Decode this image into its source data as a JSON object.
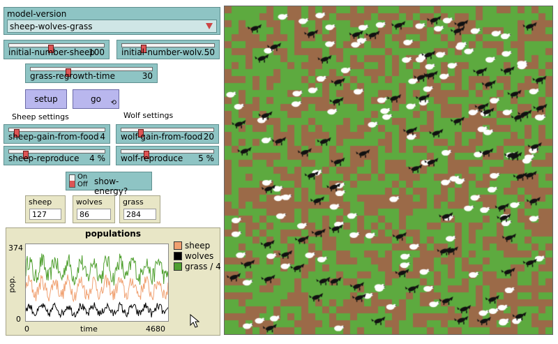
{
  "chooser": {
    "label": "model-version",
    "value": "sheep-wolves-grass"
  },
  "sliders": {
    "initial_sheep": {
      "label": "initial-number-sheep",
      "value": "100"
    },
    "initial_wolves": {
      "label": "initial-number-wolv...",
      "value": "50"
    },
    "grass_regrowth": {
      "label": "grass-regrowth-time",
      "value": "30"
    },
    "sheep_gain": {
      "label": "sheep-gain-from-food",
      "value": "4"
    },
    "sheep_reproduce": {
      "label": "sheep-reproduce",
      "value": "4 %"
    },
    "wolf_gain": {
      "label": "wolf-gain-from-food",
      "value": "20"
    },
    "wolf_reproduce": {
      "label": "wolf-reproduce",
      "value": "5 %"
    }
  },
  "buttons": {
    "setup": "setup",
    "go": "go"
  },
  "notes": {
    "sheep_settings": "Sheep settings",
    "wolf_settings": "Wolf settings"
  },
  "switch": {
    "on": "On",
    "off": "Off",
    "label": "show-energy?"
  },
  "monitors": {
    "sheep": {
      "label": "sheep",
      "value": "127"
    },
    "wolves": {
      "label": "wolves",
      "value": "86"
    },
    "grass": {
      "label": "grass",
      "value": "284"
    }
  },
  "plot": {
    "title": "populations",
    "ylabel": "pop.",
    "xlabel": "time",
    "ymax_label": "374",
    "ymin_label": "0",
    "xmin_label": "0",
    "xmax_label": "4680",
    "legend": [
      {
        "name": "sheep",
        "color": "#f0a070"
      },
      {
        "name": "wolves",
        "color": "#000000"
      },
      {
        "name": "grass / 4",
        "color": "#50a030"
      }
    ]
  },
  "colors": {
    "grass": "#5daa3f",
    "dirt": "#9b6a48",
    "sheep": "#ffffff",
    "wolf": "#111111"
  }
}
